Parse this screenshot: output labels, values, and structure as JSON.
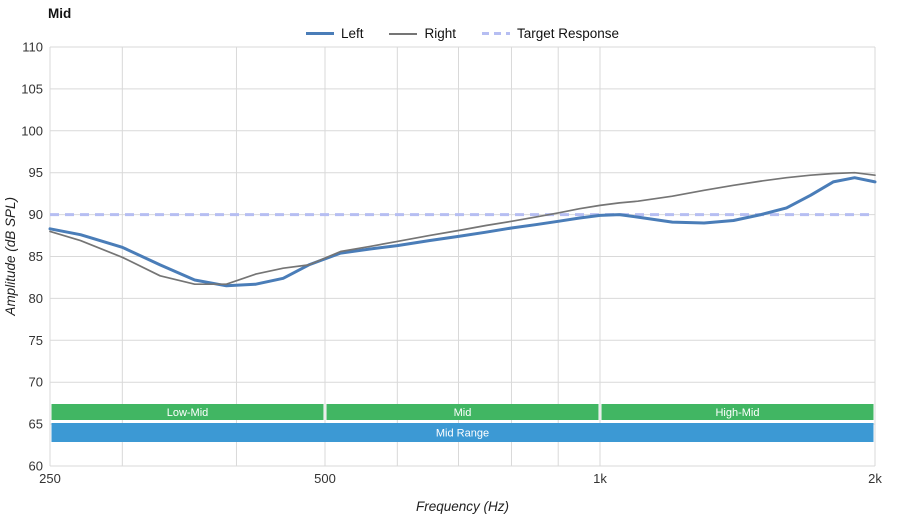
{
  "chart_data": {
    "type": "line",
    "title": "Mid",
    "xlabel": "Frequency (Hz)",
    "ylabel": "Amplitude (dB SPL)",
    "x_scale": "log",
    "xlim": [
      250,
      2000
    ],
    "ylim": [
      60,
      110
    ],
    "grid": true,
    "grid_color": "#d9d9d9",
    "legend_position": "top-center",
    "y_ticks": [
      60,
      65,
      70,
      75,
      80,
      85,
      90,
      95,
      100,
      105,
      110
    ],
    "x_ticks": [
      {
        "value": 250,
        "label": "250"
      },
      {
        "value": 500,
        "label": "500"
      },
      {
        "value": 1000,
        "label": "1k"
      },
      {
        "value": 2000,
        "label": "2k"
      }
    ],
    "x_gridlines": [
      250,
      300,
      400,
      500,
      600,
      700,
      800,
      900,
      1000,
      2000
    ],
    "target": {
      "label": "Target Response",
      "value": 90,
      "color": "#b6bef2"
    },
    "x": [
      250,
      270,
      300,
      330,
      360,
      390,
      420,
      450,
      480,
      520,
      560,
      600,
      650,
      700,
      750,
      800,
      850,
      900,
      950,
      1000,
      1050,
      1100,
      1200,
      1300,
      1400,
      1500,
      1600,
      1700,
      1800,
      1900,
      2000
    ],
    "series": [
      {
        "name": "Left",
        "color": "#4a7db8",
        "width": 3,
        "values": [
          88.3,
          87.6,
          86.1,
          84.0,
          82.2,
          81.5,
          81.7,
          82.4,
          84.0,
          85.4,
          85.9,
          86.3,
          86.9,
          87.4,
          87.9,
          88.4,
          88.8,
          89.2,
          89.6,
          89.9,
          90.0,
          89.7,
          89.1,
          89.0,
          89.3,
          90.0,
          90.8,
          92.3,
          93.9,
          94.4,
          93.9
        ]
      },
      {
        "name": "Right",
        "color": "#757575",
        "width": 1.7,
        "values": [
          88.0,
          86.9,
          84.9,
          82.7,
          81.7,
          81.7,
          82.9,
          83.6,
          84.0,
          85.6,
          86.2,
          86.8,
          87.5,
          88.1,
          88.7,
          89.2,
          89.7,
          90.2,
          90.7,
          91.1,
          91.4,
          91.6,
          92.2,
          92.9,
          93.5,
          94.0,
          94.4,
          94.7,
          94.9,
          95.0,
          94.7
        ]
      }
    ],
    "bands": [
      {
        "label": "Low-Mid",
        "from": 250,
        "to": 500,
        "color": "#41b663",
        "row": 0
      },
      {
        "label": "Mid",
        "from": 500,
        "to": 1000,
        "color": "#41b663",
        "row": 0
      },
      {
        "label": "High-Mid",
        "from": 1000,
        "to": 2000,
        "color": "#41b663",
        "row": 0
      },
      {
        "label": "Mid Range",
        "from": 250,
        "to": 2000,
        "color": "#3c99d4",
        "row": 1
      }
    ]
  }
}
